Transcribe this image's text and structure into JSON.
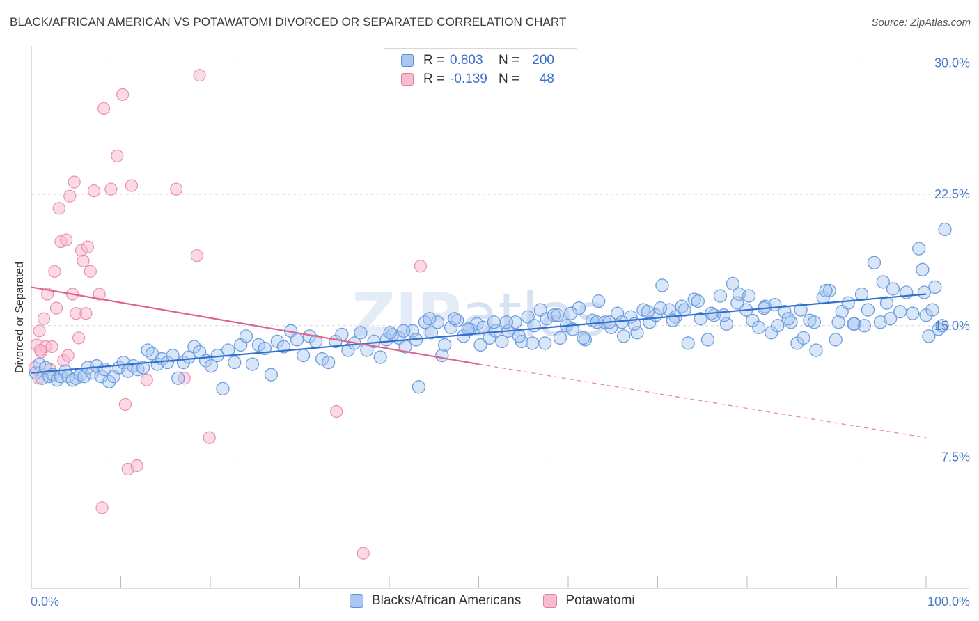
{
  "title": "BLACK/AFRICAN AMERICAN VS POTAWATOMI DIVORCED OR SEPARATED CORRELATION CHART",
  "source": "Source: ZipAtlas.com",
  "legend_top": {
    "rows": [
      {
        "r_label": "R =",
        "r_value": "0.803",
        "n_label": "N =",
        "n_value": "200",
        "color": "#a9c7f0",
        "border": "#5b8fd8"
      },
      {
        "r_label": "R =",
        "r_value": "-0.139",
        "n_label": "N =",
        "n_value": "48",
        "color": "#f7bcd0",
        "border": "#e87fa2"
      }
    ]
  },
  "legend_bottom": [
    {
      "label": "Blacks/African Americans",
      "color": "#a9c7f0",
      "border": "#5b8fd8"
    },
    {
      "label": "Potawatomi",
      "color": "#f7bcd0",
      "border": "#e87fa2"
    }
  ],
  "chart_data": {
    "type": "scatter",
    "title": "BLACK/AFRICAN AMERICAN VS POTAWATOMI DIVORCED OR SEPARATED CORRELATION CHART",
    "xlabel": "",
    "ylabel": "Divorced or Separated",
    "xlim": [
      0,
      100
    ],
    "ylim": [
      0,
      30.5
    ],
    "x_tick_labels": [
      "0.0%",
      "100.0%"
    ],
    "y_ticks": [
      7.5,
      15.0,
      22.5,
      30.0
    ],
    "y_tick_labels": [
      "7.5%",
      "15.0%",
      "22.5%",
      "30.0%"
    ],
    "grid": true,
    "watermark": "ZIPatlas",
    "colors": {
      "blue": "#6d9de0",
      "blue_line": "#2f6fcf",
      "pink": "#ec8fae",
      "pink_line": "#e0628e"
    },
    "series": [
      {
        "name": "Blacks/African Americans",
        "color": "#6d9de0",
        "trend": {
          "x0": 0,
          "y0": 12.3,
          "x1": 100,
          "y1": 16.8
        },
        "points": [
          [
            0.5,
            12.3
          ],
          [
            0.9,
            12.8
          ],
          [
            1.2,
            12.0
          ],
          [
            1.6,
            12.6
          ],
          [
            2.0,
            12.1
          ],
          [
            2.4,
            12.2
          ],
          [
            2.9,
            11.9
          ],
          [
            3.3,
            12.1
          ],
          [
            3.8,
            12.4
          ],
          [
            4.1,
            12.1
          ],
          [
            4.6,
            11.9
          ],
          [
            5.0,
            12.0
          ],
          [
            5.5,
            12.2
          ],
          [
            5.9,
            12.1
          ],
          [
            6.3,
            12.6
          ],
          [
            6.8,
            12.3
          ],
          [
            7.3,
            12.7
          ],
          [
            7.8,
            12.1
          ],
          [
            8.2,
            12.5
          ],
          [
            8.7,
            11.8
          ],
          [
            9.2,
            12.1
          ],
          [
            9.8,
            12.6
          ],
          [
            10.3,
            12.9
          ],
          [
            10.8,
            12.4
          ],
          [
            11.4,
            12.7
          ],
          [
            11.9,
            12.5
          ],
          [
            12.5,
            12.6
          ],
          [
            13.0,
            13.6
          ],
          [
            13.5,
            13.4
          ],
          [
            14.1,
            12.8
          ],
          [
            14.6,
            13.1
          ],
          [
            15.2,
            12.9
          ],
          [
            15.8,
            13.3
          ],
          [
            16.4,
            12.0
          ],
          [
            17.0,
            12.9
          ],
          [
            17.6,
            13.2
          ],
          [
            18.2,
            13.8
          ],
          [
            18.8,
            13.5
          ],
          [
            19.5,
            13.0
          ],
          [
            20.1,
            12.7
          ],
          [
            20.8,
            13.3
          ],
          [
            21.4,
            11.4
          ],
          [
            22.0,
            13.6
          ],
          [
            22.7,
            12.9
          ],
          [
            23.4,
            13.9
          ],
          [
            24.0,
            14.4
          ],
          [
            24.7,
            12.8
          ],
          [
            25.4,
            13.9
          ],
          [
            26.1,
            13.7
          ],
          [
            26.8,
            12.2
          ],
          [
            27.5,
            14.1
          ],
          [
            28.2,
            13.8
          ],
          [
            29.0,
            14.7
          ],
          [
            29.7,
            14.2
          ],
          [
            30.4,
            13.3
          ],
          [
            31.1,
            14.4
          ],
          [
            31.8,
            14.1
          ],
          [
            32.5,
            13.1
          ],
          [
            33.2,
            12.9
          ],
          [
            34.0,
            14.1
          ],
          [
            34.7,
            14.5
          ],
          [
            35.4,
            13.6
          ],
          [
            36.1,
            14.0
          ],
          [
            36.8,
            14.6
          ],
          [
            37.5,
            13.6
          ],
          [
            38.3,
            14.1
          ],
          [
            39.0,
            13.2
          ],
          [
            39.7,
            14.2
          ],
          [
            40.4,
            14.5
          ],
          [
            41.1,
            14.3
          ],
          [
            41.8,
            13.8
          ],
          [
            42.6,
            14.7
          ],
          [
            43.3,
            11.5
          ],
          [
            44.0,
            15.2
          ],
          [
            44.7,
            14.6
          ],
          [
            45.4,
            15.2
          ],
          [
            46.2,
            13.9
          ],
          [
            46.9,
            14.9
          ],
          [
            47.6,
            15.3
          ],
          [
            48.3,
            14.4
          ],
          [
            49.0,
            14.8
          ],
          [
            49.8,
            15.1
          ],
          [
            50.5,
            14.9
          ],
          [
            51.2,
            14.3
          ],
          [
            51.9,
            14.7
          ],
          [
            52.6,
            14.1
          ],
          [
            53.3,
            14.7
          ],
          [
            54.1,
            15.2
          ],
          [
            54.8,
            14.1
          ],
          [
            55.5,
            15.5
          ],
          [
            56.2,
            15.0
          ],
          [
            56.9,
            15.9
          ],
          [
            57.6,
            15.4
          ],
          [
            58.4,
            15.6
          ],
          [
            59.1,
            14.3
          ],
          [
            59.8,
            15.0
          ],
          [
            60.5,
            14.8
          ],
          [
            61.2,
            16.0
          ],
          [
            61.9,
            14.2
          ],
          [
            62.7,
            15.3
          ],
          [
            63.4,
            16.4
          ],
          [
            64.1,
            15.2
          ],
          [
            64.8,
            14.9
          ],
          [
            65.5,
            15.7
          ],
          [
            66.2,
            14.4
          ],
          [
            67.0,
            15.5
          ],
          [
            67.7,
            14.6
          ],
          [
            68.4,
            15.9
          ],
          [
            69.1,
            15.2
          ],
          [
            69.8,
            15.6
          ],
          [
            70.5,
            17.3
          ],
          [
            71.3,
            15.9
          ],
          [
            72.0,
            15.5
          ],
          [
            72.7,
            16.1
          ],
          [
            73.4,
            14.0
          ],
          [
            74.1,
            16.5
          ],
          [
            74.8,
            15.4
          ],
          [
            75.6,
            14.2
          ],
          [
            76.3,
            15.6
          ],
          [
            77.0,
            16.7
          ],
          [
            77.7,
            15.1
          ],
          [
            78.4,
            17.4
          ],
          [
            79.1,
            16.8
          ],
          [
            79.9,
            15.9
          ],
          [
            80.6,
            15.3
          ],
          [
            81.3,
            14.9
          ],
          [
            82.0,
            16.1
          ],
          [
            82.7,
            14.6
          ],
          [
            83.4,
            15.0
          ],
          [
            84.2,
            15.8
          ],
          [
            84.9,
            15.2
          ],
          [
            85.6,
            14.0
          ],
          [
            86.3,
            14.3
          ],
          [
            87.0,
            15.3
          ],
          [
            87.7,
            13.6
          ],
          [
            88.5,
            16.6
          ],
          [
            89.2,
            17.0
          ],
          [
            89.9,
            14.2
          ],
          [
            90.6,
            15.8
          ],
          [
            91.3,
            16.3
          ],
          [
            92.0,
            15.1
          ],
          [
            92.8,
            16.8
          ],
          [
            93.5,
            15.9
          ],
          [
            94.2,
            18.6
          ],
          [
            94.9,
            15.2
          ],
          [
            95.6,
            16.3
          ],
          [
            96.3,
            17.1
          ],
          [
            97.1,
            15.8
          ],
          [
            97.8,
            16.9
          ],
          [
            98.5,
            15.7
          ],
          [
            99.2,
            19.4
          ],
          [
            99.6,
            18.2
          ],
          [
            99.8,
            16.9
          ],
          [
            100.0,
            15.6
          ],
          [
            100.3,
            14.4
          ],
          [
            100.7,
            15.9
          ],
          [
            101.0,
            17.2
          ],
          [
            101.4,
            14.8
          ],
          [
            101.8,
            15.0
          ],
          [
            102.1,
            20.5
          ],
          [
            96.0,
            15.4
          ],
          [
            95.2,
            17.5
          ],
          [
            93.1,
            15.0
          ],
          [
            91.9,
            15.1
          ],
          [
            90.2,
            15.2
          ],
          [
            88.8,
            17.0
          ],
          [
            87.5,
            15.2
          ],
          [
            86.0,
            15.9
          ],
          [
            84.6,
            15.4
          ],
          [
            83.1,
            16.2
          ],
          [
            81.9,
            16.0
          ],
          [
            80.2,
            16.7
          ],
          [
            78.9,
            16.3
          ],
          [
            77.4,
            15.6
          ],
          [
            76.0,
            15.7
          ],
          [
            74.5,
            16.4
          ],
          [
            73.0,
            15.9
          ],
          [
            71.7,
            15.3
          ],
          [
            70.3,
            16.0
          ],
          [
            68.9,
            15.8
          ],
          [
            67.4,
            15.1
          ],
          [
            66.0,
            15.2
          ],
          [
            64.6,
            15.2
          ],
          [
            63.2,
            15.2
          ],
          [
            61.7,
            14.3
          ],
          [
            60.3,
            15.7
          ],
          [
            58.8,
            15.6
          ],
          [
            57.4,
            14.0
          ],
          [
            56.0,
            14.0
          ],
          [
            54.5,
            14.4
          ],
          [
            53.1,
            15.2
          ],
          [
            51.7,
            15.2
          ],
          [
            50.2,
            13.9
          ],
          [
            48.8,
            14.8
          ],
          [
            47.3,
            15.4
          ],
          [
            45.9,
            13.3
          ],
          [
            44.5,
            15.4
          ],
          [
            43.0,
            14.2
          ],
          [
            41.6,
            14.7
          ],
          [
            40.1,
            14.6
          ]
        ]
      },
      {
        "name": "Potawatomi",
        "color": "#ec8fae",
        "trend": {
          "x0": 0,
          "y0": 17.2,
          "x1": 50,
          "y1": 12.8,
          "dash_x1": 100,
          "dash_y1": 8.6
        },
        "points": [
          [
            0.4,
            12.6
          ],
          [
            0.6,
            13.9
          ],
          [
            0.9,
            14.7
          ],
          [
            1.1,
            13.5
          ],
          [
            1.4,
            15.4
          ],
          [
            1.6,
            13.8
          ],
          [
            1.8,
            16.8
          ],
          [
            2.1,
            12.5
          ],
          [
            2.3,
            13.8
          ],
          [
            2.6,
            18.1
          ],
          [
            2.8,
            16.0
          ],
          [
            3.1,
            21.7
          ],
          [
            3.3,
            19.8
          ],
          [
            3.6,
            13.0
          ],
          [
            3.9,
            19.9
          ],
          [
            4.1,
            13.3
          ],
          [
            4.3,
            22.4
          ],
          [
            4.6,
            16.8
          ],
          [
            4.8,
            23.2
          ],
          [
            5.0,
            15.7
          ],
          [
            5.3,
            14.3
          ],
          [
            5.6,
            19.3
          ],
          [
            5.8,
            18.7
          ],
          [
            6.1,
            15.7
          ],
          [
            6.3,
            19.5
          ],
          [
            6.6,
            18.1
          ],
          [
            7.0,
            22.7
          ],
          [
            7.6,
            16.8
          ],
          [
            7.9,
            4.6
          ],
          [
            8.1,
            27.4
          ],
          [
            8.9,
            22.8
          ],
          [
            9.6,
            24.7
          ],
          [
            10.2,
            28.2
          ],
          [
            10.5,
            10.5
          ],
          [
            10.8,
            6.8
          ],
          [
            11.2,
            23.0
          ],
          [
            11.8,
            7.0
          ],
          [
            12.9,
            11.9
          ],
          [
            16.2,
            22.8
          ],
          [
            17.1,
            12.0
          ],
          [
            18.5,
            19.0
          ],
          [
            18.8,
            29.3
          ],
          [
            19.9,
            8.6
          ],
          [
            34.1,
            10.1
          ],
          [
            37.1,
            2.0
          ],
          [
            43.5,
            18.4
          ],
          [
            1.0,
            13.6
          ],
          [
            0.8,
            12.0
          ]
        ]
      }
    ]
  }
}
